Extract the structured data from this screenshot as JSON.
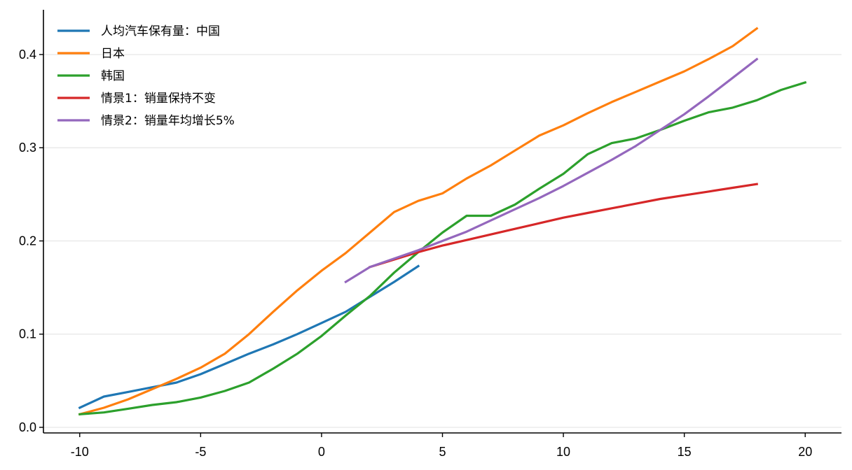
{
  "chart_data": {
    "type": "line",
    "title": "",
    "xlabel": "",
    "ylabel": "",
    "xlim": [
      -11.5,
      21.5
    ],
    "ylim": [
      -0.006,
      0.448
    ],
    "xticks": [
      -10,
      -5,
      0,
      5,
      10,
      15,
      20
    ],
    "xtick_labels": [
      "-10",
      "-5",
      "0",
      "5",
      "10",
      "15",
      "20"
    ],
    "yticks": [
      0.0,
      0.1,
      0.2,
      0.3,
      0.4
    ],
    "ytick_labels": [
      "0.0",
      "0.1",
      "0.2",
      "0.3",
      "0.4"
    ],
    "grid": "horizontal",
    "legend_position": "top-left",
    "series": [
      {
        "name": "人均汽车保有量：中国",
        "color": "#1f77b4",
        "x": [
          -10,
          -9,
          -8,
          -7,
          -6,
          -5,
          -4,
          -3,
          -2,
          -1,
          0,
          1,
          2,
          3,
          4
        ],
        "values": [
          0.021,
          0.033,
          0.038,
          0.043,
          0.048,
          0.057,
          0.068,
          0.079,
          0.089,
          0.1,
          0.112,
          0.124,
          0.14,
          0.156,
          0.173
        ]
      },
      {
        "name": "日本",
        "color": "#ff7f0e",
        "x": [
          -10,
          -9,
          -8,
          -7,
          -6,
          -5,
          -4,
          -3,
          -2,
          -1,
          0,
          1,
          2,
          3,
          4,
          5,
          6,
          7,
          8,
          9,
          10,
          11,
          12,
          13,
          14,
          15,
          16,
          17,
          18
        ],
        "values": [
          0.014,
          0.021,
          0.03,
          0.041,
          0.052,
          0.064,
          0.079,
          0.1,
          0.124,
          0.147,
          0.168,
          0.187,
          0.209,
          0.231,
          0.243,
          0.251,
          0.267,
          0.281,
          0.297,
          0.313,
          0.324,
          0.337,
          0.349,
          0.36,
          0.371,
          0.382,
          0.395,
          0.409,
          0.428
        ]
      },
      {
        "name": "韩国",
        "color": "#2ca02c",
        "x": [
          -10,
          -9,
          -8,
          -7,
          -6,
          -5,
          -4,
          -3,
          -2,
          -1,
          0,
          1,
          2,
          3,
          4,
          5,
          6,
          7,
          8,
          9,
          10,
          11,
          12,
          13,
          14,
          15,
          16,
          17,
          18,
          19,
          20
        ],
        "values": [
          0.014,
          0.016,
          0.02,
          0.024,
          0.027,
          0.032,
          0.039,
          0.048,
          0.063,
          0.079,
          0.098,
          0.12,
          0.141,
          0.166,
          0.188,
          0.209,
          0.227,
          0.227,
          0.239,
          0.256,
          0.272,
          0.293,
          0.305,
          0.31,
          0.319,
          0.329,
          0.338,
          0.343,
          0.351,
          0.362,
          0.37
        ]
      },
      {
        "name": "情景1：销量保持不变",
        "color": "#d62728",
        "x": [
          2,
          3,
          4,
          5,
          6,
          7,
          8,
          9,
          10,
          11,
          12,
          13,
          14,
          15,
          16,
          17,
          18
        ],
        "values": [
          0.172,
          0.18,
          0.188,
          0.195,
          0.201,
          0.207,
          0.213,
          0.219,
          0.225,
          0.23,
          0.235,
          0.24,
          0.245,
          0.249,
          0.253,
          0.257,
          0.261
        ]
      },
      {
        "name": "情景2：销量年均增长5%",
        "color": "#9467bd",
        "x": [
          1,
          2,
          3,
          4,
          5,
          6,
          7,
          8,
          9,
          10,
          11,
          12,
          13,
          14,
          15,
          16,
          17,
          18
        ],
        "values": [
          0.156,
          0.172,
          0.181,
          0.19,
          0.2,
          0.21,
          0.222,
          0.234,
          0.246,
          0.259,
          0.273,
          0.287,
          0.302,
          0.319,
          0.336,
          0.355,
          0.375,
          0.395
        ]
      }
    ]
  }
}
